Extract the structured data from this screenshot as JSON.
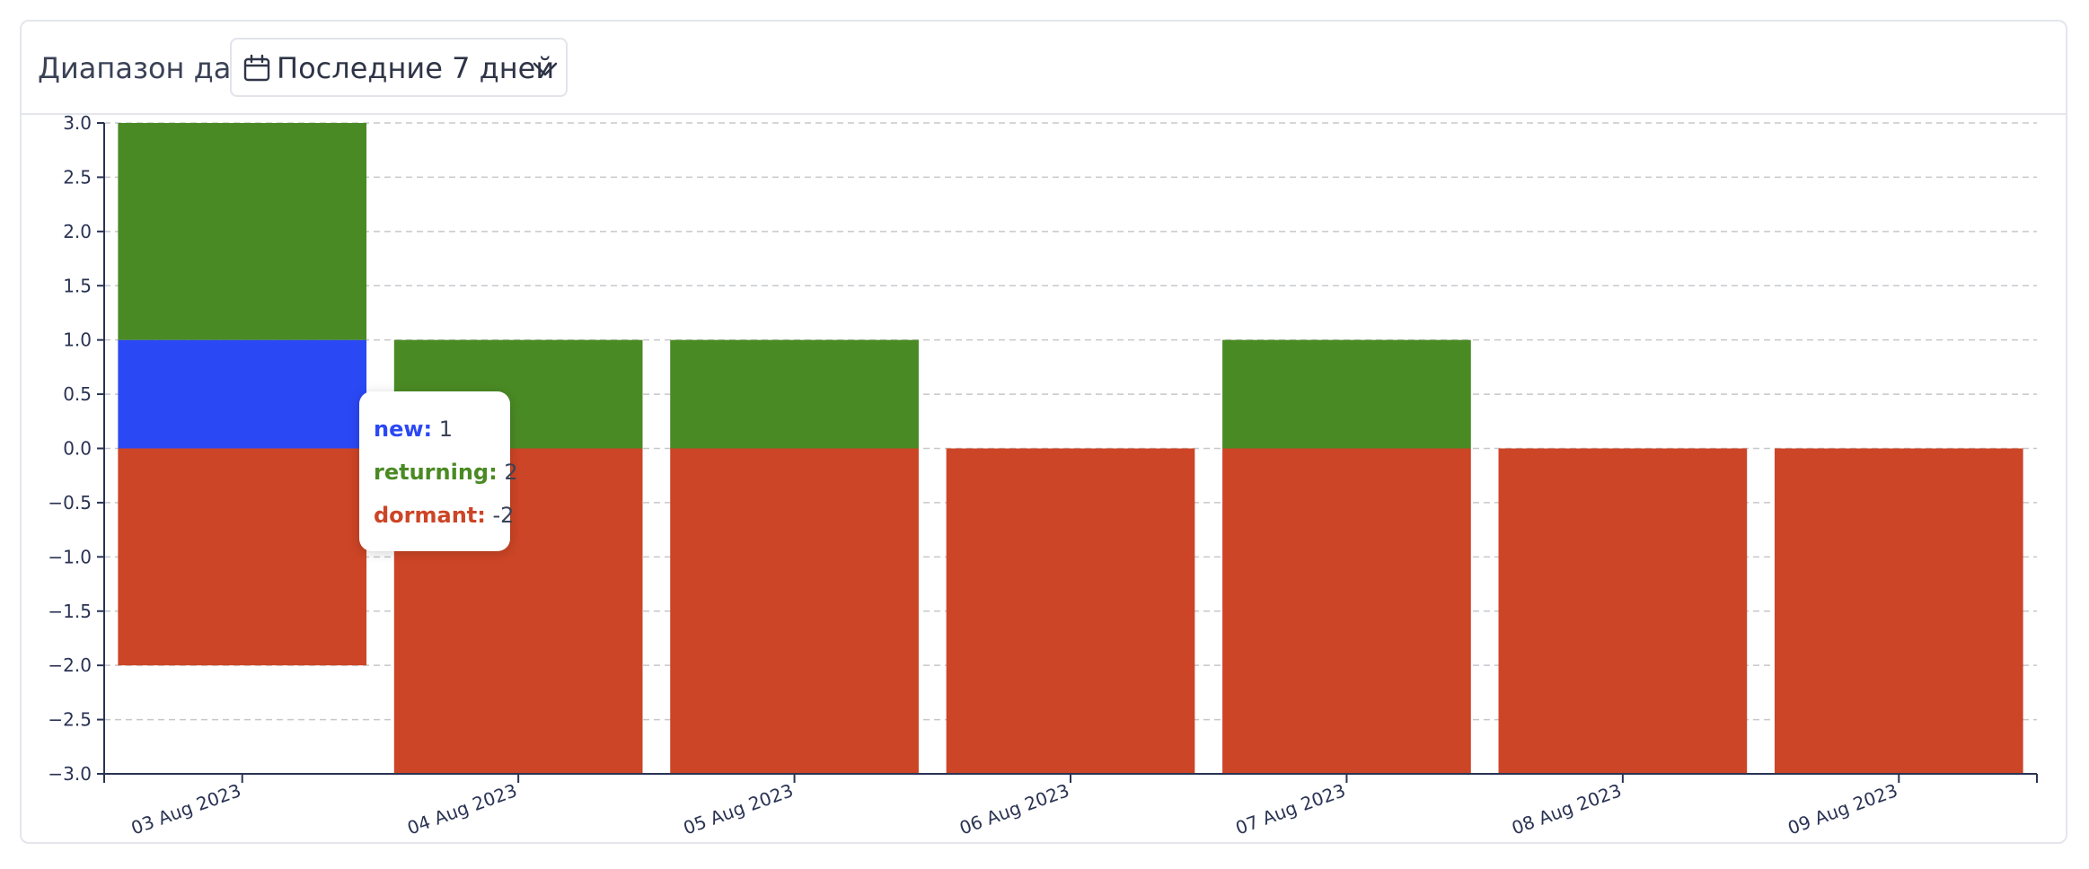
{
  "toolbar": {
    "range_label": "Диапазон дат",
    "range_value": "Последние 7 дней",
    "calendar_icon": "calendar-icon",
    "chevron_icon": "chevron-down-icon"
  },
  "chart_data": {
    "type": "bar",
    "stacked": true,
    "categories": [
      "03 Aug 2023",
      "04 Aug 2023",
      "05 Aug 2023",
      "06 Aug 2023",
      "07 Aug 2023",
      "08 Aug 2023",
      "09 Aug 2023"
    ],
    "series": [
      {
        "name": "new",
        "color": "#2b48f5",
        "values": [
          1,
          0,
          0,
          0,
          0,
          0,
          0
        ]
      },
      {
        "name": "returning",
        "color": "#4a8a24",
        "values": [
          2,
          1,
          1,
          0,
          1,
          0,
          0
        ]
      },
      {
        "name": "dormant",
        "color": "#cc4526",
        "values": [
          -2,
          -3,
          -3,
          -3,
          -3,
          -3,
          -3
        ]
      }
    ],
    "ylim": [
      -3.0,
      3.0
    ],
    "yticks": [
      "3.0",
      "2.5",
      "2.0",
      "1.5",
      "1.0",
      "0.5",
      "0.0",
      "−0.5",
      "−1.0",
      "−1.5",
      "−2.0",
      "−2.5",
      "−3.0"
    ],
    "grid": true,
    "xlabel": "",
    "ylabel": ""
  },
  "tooltip": {
    "rows": [
      {
        "key": "new:",
        "value": "1",
        "color": "#2b48f5"
      },
      {
        "key": "returning:",
        "value": "2",
        "color": "#4a8a24"
      },
      {
        "key": "dormant:",
        "value": "-2",
        "color": "#cc4526"
      }
    ]
  }
}
